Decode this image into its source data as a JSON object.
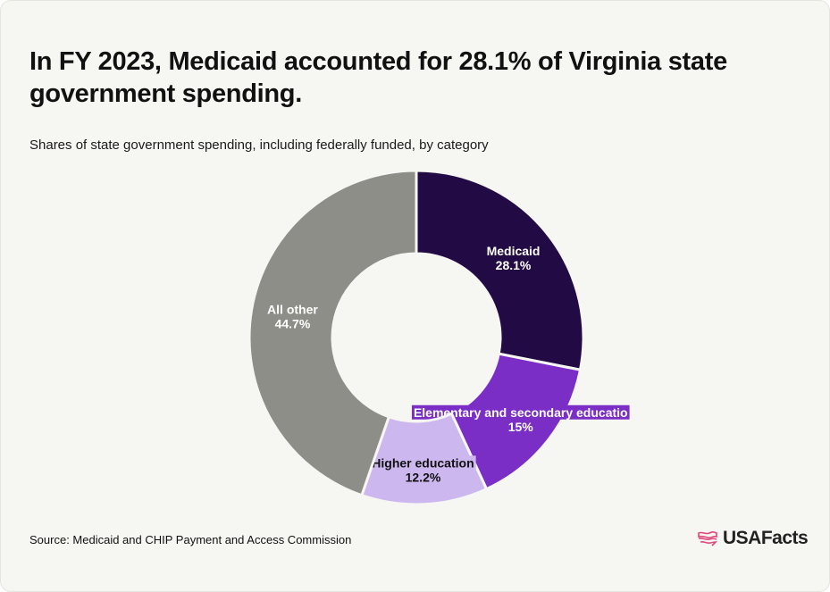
{
  "title": "In FY 2023, Medicaid accounted for 28.1% of Virginia state government spending.",
  "subtitle": "Shares of state government spending, including federally funded, by category",
  "source": "Source: Medicaid and CHIP Payment and Access Commission",
  "brand": {
    "name": "USAFacts",
    "icon": "us-map-flag-icon"
  },
  "chart_data": {
    "type": "pie",
    "donut": true,
    "slices": [
      {
        "label": "Medicaid",
        "value": 28.1,
        "value_label": "28.1%",
        "color": "#220a45",
        "text_color": "#ffffff",
        "boxed": false
      },
      {
        "label": "Elementary and secondary educatio",
        "value": 15,
        "value_label": "15%",
        "color": "#7b2ec6",
        "text_color": "#ffffff",
        "boxed": true,
        "box_color": "#7b2ec6"
      },
      {
        "label": "Higher education",
        "value": 12.2,
        "value_label": "12.2%",
        "color": "#cdb7ef",
        "text_color": "#111111",
        "boxed": true,
        "box_color": "#cdb7ef"
      },
      {
        "label": "All other",
        "value": 44.7,
        "value_label": "44.7%",
        "color": "#8e8e89",
        "text_color": "#ffffff",
        "boxed": false
      }
    ]
  }
}
